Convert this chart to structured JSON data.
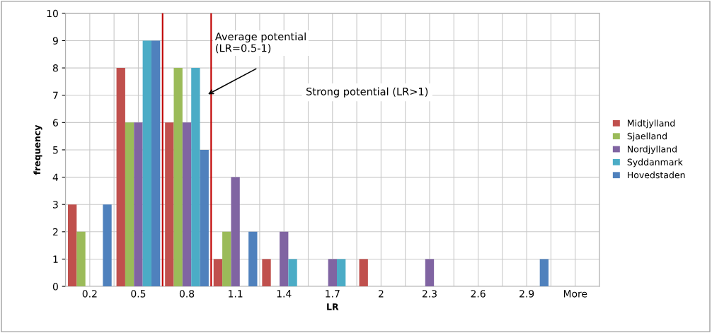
{
  "chart_data": {
    "type": "bar",
    "xlabel": "LR",
    "ylabel": "frequency",
    "categories": [
      "0.2",
      "0.5",
      "0.8",
      "1.1",
      "1.4",
      "1.7",
      "2",
      "2.3",
      "2.6",
      "2.9",
      "More"
    ],
    "series": [
      {
        "name": "Midtjylland",
        "color": "#c0504d",
        "values": [
          3,
          8,
          6,
          1,
          1,
          0,
          1,
          0,
          0,
          0,
          0
        ]
      },
      {
        "name": "Sjaelland",
        "color": "#9bbb59",
        "values": [
          2,
          6,
          8,
          2,
          0,
          0,
          0,
          0,
          0,
          0,
          0
        ]
      },
      {
        "name": "Nordjylland",
        "color": "#8064a2",
        "values": [
          0,
          6,
          6,
          4,
          2,
          1,
          0,
          1,
          0,
          0,
          0
        ]
      },
      {
        "name": "Syddanmark",
        "color": "#4bacc6",
        "values": [
          0,
          9,
          8,
          0,
          1,
          1,
          0,
          0,
          0,
          0,
          0
        ]
      },
      {
        "name": "Hovedstaden",
        "color": "#4f81bd",
        "values": [
          3,
          9,
          5,
          2,
          0,
          0,
          0,
          0,
          0,
          1,
          0
        ]
      }
    ],
    "ylim": [
      0,
      10
    ],
    "yticks": [
      0,
      1,
      2,
      3,
      4,
      5,
      6,
      7,
      8,
      9,
      10
    ],
    "annotations": [
      "Average potential\n(LR=0.5-1)",
      "Strong potential (LR>1)"
    ],
    "grid": true,
    "legend": "right"
  }
}
